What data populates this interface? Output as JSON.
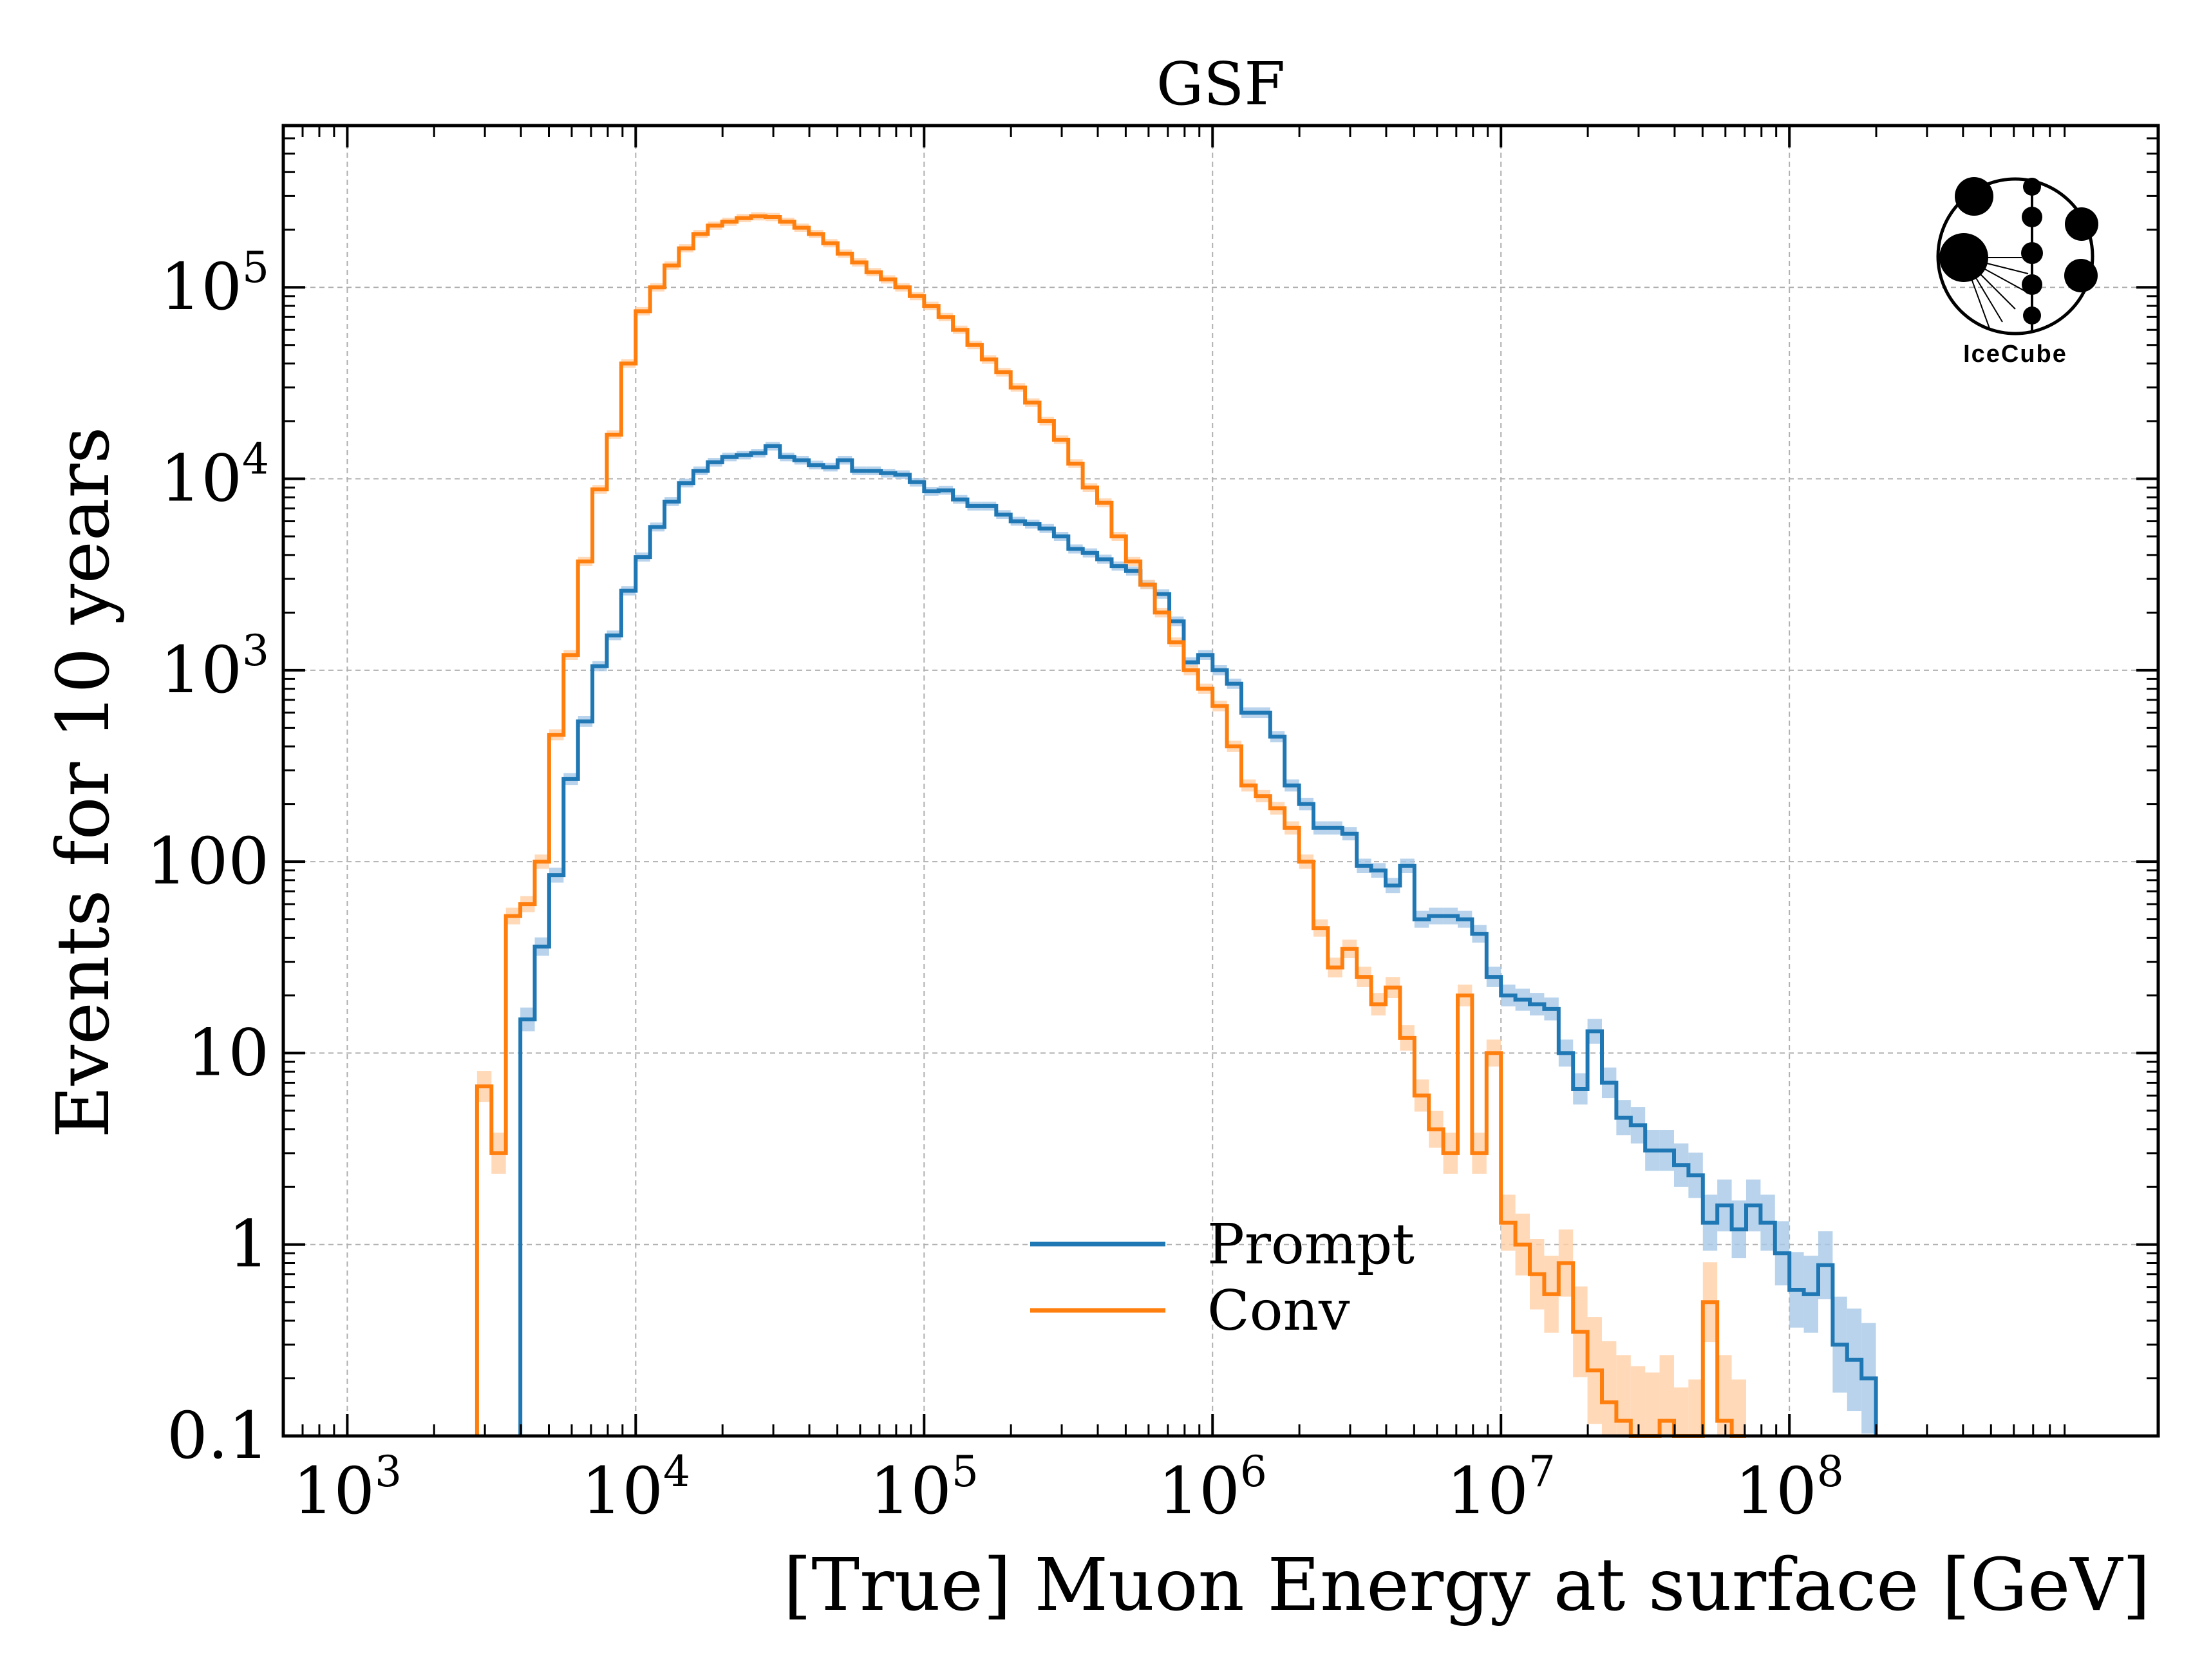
{
  "chart_data": {
    "type": "line",
    "title": "GSF",
    "xlabel": "[True] Muon Energy at surface [GeV]",
    "ylabel": "Events for 10 years",
    "xscale": "log",
    "yscale": "log",
    "xlim": [
      600,
      1900000000
    ],
    "ylim": [
      0.1,
      700000
    ],
    "x_ticks": [
      {
        "value": 1000,
        "base": "10",
        "exp": "3"
      },
      {
        "value": 10000,
        "base": "10",
        "exp": "4"
      },
      {
        "value": 100000,
        "base": "10",
        "exp": "5"
      },
      {
        "value": 1000000,
        "base": "10",
        "exp": "6"
      },
      {
        "value": 10000000,
        "base": "10",
        "exp": "7"
      },
      {
        "value": 100000000,
        "base": "10",
        "exp": "8"
      }
    ],
    "y_ticks": [
      {
        "value": 0.1,
        "base": "0.1",
        "exp": ""
      },
      {
        "value": 1,
        "base": "1",
        "exp": ""
      },
      {
        "value": 10,
        "base": "10",
        "exp": ""
      },
      {
        "value": 100,
        "base": "100",
        "exp": ""
      },
      {
        "value": 1000,
        "base": "10",
        "exp": "3"
      },
      {
        "value": 10000,
        "base": "10",
        "exp": "4"
      },
      {
        "value": 100000,
        "base": "10",
        "exp": "5"
      }
    ],
    "grid": true,
    "legend_position": "bottom-center",
    "logo_text": "IceCube",
    "series": [
      {
        "name": "Prompt",
        "color": "#1f77b4",
        "band_color": "#a6c8e6",
        "x_start": 3981,
        "x_end": 100000000,
        "bins_per_decade": 20,
        "values": [
          15,
          36,
          85,
          270,
          540,
          1050,
          1520,
          2600,
          3900,
          5600,
          7600,
          9500,
          11000,
          12200,
          13000,
          13300,
          13600,
          14800,
          13000,
          12500,
          11800,
          11500,
          12500,
          11000,
          11000,
          10700,
          10500,
          9600,
          8600,
          8700,
          7800,
          7200,
          7200,
          6500,
          6000,
          5800,
          5500,
          5000,
          4300,
          4100,
          3800,
          3500,
          3300,
          2800,
          2500,
          1800,
          1100,
          1200,
          1000,
          850,
          600,
          600,
          450,
          250,
          200,
          150,
          150,
          140,
          95,
          90,
          75,
          95,
          50,
          52,
          52,
          50,
          42,
          25,
          20,
          19,
          18,
          17,
          10,
          6.5,
          13,
          7,
          4.6,
          4.2,
          3.1,
          3.1,
          2.6,
          2.3,
          1.3,
          1.6,
          1.2,
          1.6,
          1.3,
          0.9,
          0.58,
          0.55,
          0.78,
          0.3,
          0.25,
          0.2
        ]
      },
      {
        "name": "Conv",
        "color": "#ff7f0e",
        "band_color": "#ffd0a6",
        "x_start": 2818,
        "x_end": 100000000,
        "bins_per_decade": 20,
        "values": [
          6.7,
          3,
          52,
          60,
          100,
          460,
          1200,
          3700,
          8800,
          17000,
          40000,
          75000,
          100000,
          130000,
          160000,
          190000,
          210000,
          220000,
          230000,
          235000,
          233000,
          220000,
          205000,
          190000,
          170000,
          150000,
          135000,
          120000,
          110000,
          100000,
          90000,
          80000,
          70000,
          60000,
          50000,
          42000,
          36000,
          30000,
          25000,
          20000,
          16000,
          12000,
          9000,
          7500,
          5000,
          3700,
          2800,
          2000,
          1400,
          1000,
          800,
          650,
          400,
          250,
          220,
          190,
          150,
          100,
          45,
          28,
          35,
          25,
          18,
          22,
          12,
          6,
          4,
          3,
          20,
          3,
          10,
          1.3,
          1,
          0.7,
          0.55,
          0.8,
          0.35,
          0.22,
          0.15,
          0.12,
          0.1,
          0.09,
          0.12,
          0.07,
          0.08,
          0.5,
          0.12,
          0.08
        ]
      }
    ]
  }
}
